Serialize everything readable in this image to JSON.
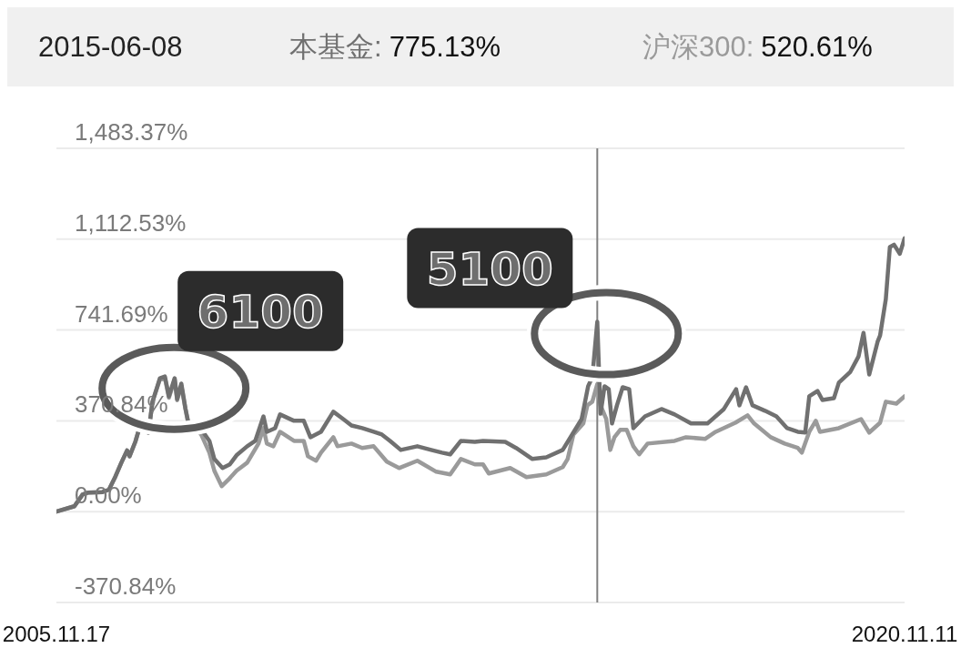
{
  "chart_data": {
    "type": "line",
    "xlim": [
      "2005-11-17",
      "2020-11-11"
    ],
    "xticks": [
      {
        "value": "2005-11-17",
        "label": "2005.11.17"
      },
      {
        "value": "2020-11-11",
        "label": "2020.11.11"
      }
    ],
    "ylim": [
      -370.84,
      1483.37
    ],
    "yticks": [
      {
        "value": -370.84,
        "label": "-370.84%"
      },
      {
        "value": 0,
        "label": "0.00%"
      },
      {
        "value": 370.84,
        "label": "370.84%"
      },
      {
        "value": 741.69,
        "label": "741.69%"
      },
      {
        "value": 1112.53,
        "label": "1,112.53%"
      },
      {
        "value": 1483.37,
        "label": "1,483.37%"
      }
    ],
    "grid": "y",
    "legend": "top",
    "line_style": "solid",
    "ref_lines": [
      {
        "axis": "x",
        "value": "2015-06-08",
        "color": "#808080"
      }
    ],
    "annotations": [
      {
        "text": "6100",
        "x": "2007-10-18",
        "y": 552
      },
      {
        "text": "5100",
        "x": "2015-06-08",
        "y": 775.13
      },
      "2015-06-08",
      "775.13%",
      "520.61%"
    ],
    "series": [
      {
        "name": "本基金:",
        "color": "#707070",
        "x": [
          "2005-11-17",
          "2006-03-13",
          "2006-05-05",
          "2006-06-12",
          "2006-09-10",
          "2006-10-22",
          "2006-11-28",
          "2007-01-10",
          "2007-02-16",
          "2007-03-04",
          "2007-04-10",
          "2007-05-22",
          "2007-06-18",
          "2007-07-04",
          "2007-07-30",
          "2007-09-16",
          "2007-10-18",
          "2007-11-13",
          "2007-12-20",
          "2008-01-05",
          "2008-02-01",
          "2008-02-27",
          "2008-03-26",
          "2008-05-01",
          "2008-06-08",
          "2008-07-31",
          "2008-09-01",
          "2008-10-24",
          "2008-12-10",
          "2009-01-22",
          "2009-04-01",
          "2009-05-23",
          "2009-07-15",
          "2009-08-06",
          "2009-09-28",
          "2009-10-30",
          "2010-01-28",
          "2010-04-01",
          "2010-05-14",
          "2010-07-21",
          "2010-10-09",
          "2010-12-12",
          "2011-02-03",
          "2011-04-13",
          "2011-06-26",
          "2011-08-18",
          "2011-10-10",
          "2011-12-18",
          "2012-04-03",
          "2012-07-01",
          "2012-09-09",
          "2012-11-01",
          "2013-01-09",
          "2013-04-09",
          "2013-06-01",
          "2013-10-22",
          "2013-12-31",
          "2014-04-15",
          "2014-07-14",
          "2014-10-28",
          "2015-01-05",
          "2015-02-27",
          "2015-04-10",
          "2015-05-07",
          "2015-06-08",
          "2015-06-29",
          "2015-07-25",
          "2015-08-21",
          "2015-09-11",
          "2015-10-13",
          "2015-11-19",
          "2015-12-31",
          "2016-01-27",
          "2016-04-11",
          "2016-07-26",
          "2016-10-19",
          "2017-02-02",
          "2017-05-19",
          "2017-09-02",
          "2017-11-20",
          "2017-12-11",
          "2018-01-23",
          "2018-03-06",
          "2018-05-25",
          "2018-08-07",
          "2018-10-15",
          "2018-12-23",
          "2019-02-09",
          "2019-03-07",
          "2019-04-29",
          "2019-05-31",
          "2019-08-13",
          "2019-09-14",
          "2019-11-27",
          "2020-01-19",
          "2020-02-20",
          "2020-03-28",
          "2020-05-21",
          "2020-06-06",
          "2020-07-13",
          "2020-08-08",
          "2020-09-04",
          "2020-10-11",
          "2020-11-11"
        ],
        "values": [
          0,
          22,
          70,
          78,
          80,
          90,
          137,
          200,
          250,
          226,
          285,
          375,
          360,
          322,
          449,
          545,
          552,
          471,
          545,
          460,
          523,
          423,
          337,
          360,
          337,
          289,
          215,
          178,
          193,
          230,
          267,
          289,
          389,
          326,
          341,
          397,
          371,
          371,
          304,
          326,
          408,
          378,
          352,
          341,
          326,
          315,
          289,
          252,
          267,
          252,
          241,
          234,
          289,
          285,
          289,
          285,
          260,
          215,
          222,
          252,
          323,
          378,
          512,
          549,
          775.13,
          400,
          512,
          500,
          360,
          434,
          508,
          500,
          341,
          389,
          419,
          397,
          360,
          360,
          419,
          500,
          434,
          508,
          434,
          412,
          389,
          341,
          326,
          323,
          471,
          493,
          456,
          463,
          527,
          571,
          634,
          730,
          560,
          694,
          719,
          868,
          1080,
          1090,
          1053,
          1116
        ]
      },
      {
        "name": "沪深300:",
        "color": "#9a9a9a",
        "x": [
          "2005-11-17",
          "2006-03-13",
          "2006-05-05",
          "2006-06-12",
          "2006-09-10",
          "2006-10-22",
          "2006-11-28",
          "2007-01-10",
          "2007-02-16",
          "2007-03-04",
          "2007-04-10",
          "2007-05-22",
          "2007-06-18",
          "2007-07-04",
          "2007-07-30",
          "2007-09-16",
          "2007-10-18",
          "2007-11-13",
          "2007-12-20",
          "2008-01-05",
          "2008-02-01",
          "2008-02-27",
          "2008-03-26",
          "2008-05-01",
          "2008-06-08",
          "2008-07-31",
          "2008-09-01",
          "2008-10-19",
          "2008-11-30",
          "2009-01-22",
          "2009-04-01",
          "2009-06-13",
          "2009-07-15",
          "2009-08-06",
          "2009-09-17",
          "2009-10-30",
          "2010-01-28",
          "2010-04-01",
          "2010-04-28",
          "2010-06-20",
          "2010-07-21",
          "2010-10-09",
          "2010-11-05",
          "2011-02-03",
          "2011-04-13",
          "2011-06-26",
          "2011-09-19",
          "2011-12-07",
          "2012-04-03",
          "2012-08-03",
          "2012-11-01",
          "2013-01-09",
          "2013-04-09",
          "2013-06-01",
          "2013-07-08",
          "2013-11-23",
          "2014-03-08",
          "2014-07-14",
          "2014-10-28",
          "2014-11-29",
          "2015-01-05",
          "2015-03-10",
          "2015-04-05",
          "2015-05-07",
          "2015-06-08",
          "2015-06-29",
          "2015-08-05",
          "2015-08-31",
          "2015-09-27",
          "2015-11-03",
          "2015-12-15",
          "2016-01-27",
          "2016-03-05",
          "2016-04-28",
          "2016-10-19",
          "2017-01-01",
          "2017-05-03",
          "2017-07-11",
          "2017-11-15",
          "2018-02-02",
          "2018-03-16",
          "2018-07-01",
          "2018-09-29",
          "2018-12-23",
          "2019-01-18",
          "2019-03-07",
          "2019-04-18",
          "2019-05-15",
          "2019-09-14",
          "2020-02-04",
          "2020-03-28",
          "2020-06-06",
          "2020-07-13",
          "2020-09-19",
          "2020-11-11"
        ],
        "values": [
          0,
          22,
          70,
          78,
          80,
          90,
          137,
          200,
          250,
          226,
          285,
          375,
          360,
          322,
          449,
          540,
          545,
          465,
          540,
          455,
          515,
          420,
          330,
          340,
          315,
          241,
          167,
          104,
          130,
          167,
          200,
          278,
          341,
          278,
          267,
          326,
          289,
          289,
          226,
          208,
          241,
          304,
          267,
          278,
          260,
          267,
          204,
          178,
          208,
          163,
          152,
          215,
          193,
          193,
          156,
          178,
          141,
          152,
          182,
          215,
          315,
          360,
          434,
          449,
          520.61,
          434,
          378,
          252,
          304,
          334,
          334,
          267,
          234,
          278,
          289,
          304,
          297,
          326,
          363,
          393,
          360,
          304,
          278,
          260,
          241,
          326,
          371,
          326,
          341,
          378,
          323,
          363,
          449,
          441,
          471
        ]
      }
    ]
  }
}
